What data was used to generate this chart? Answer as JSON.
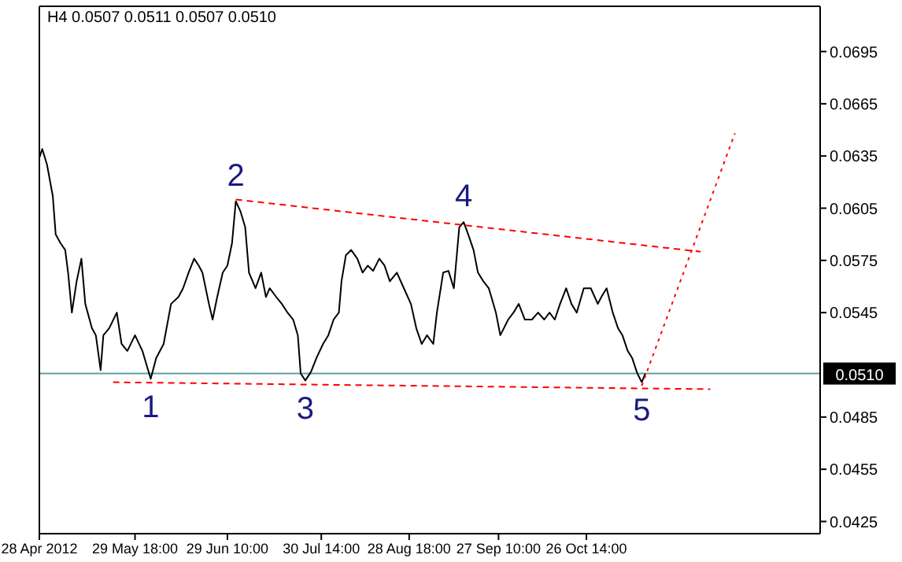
{
  "chart_data": {
    "type": "line",
    "title": "H4  0.0507 0.0511 0.0507 0.0510",
    "xlim": [
      "2012-04-28T00:00",
      "2013-01-12T04:00"
    ],
    "ylim": [
      0.0418,
      0.0721
    ],
    "xticks": [
      {
        "value": "2012-04-28T00:00",
        "label": "28 Apr 2012"
      },
      {
        "value": "2012-05-29T18:00",
        "label": "29 May 18:00"
      },
      {
        "value": "2012-06-29T10:00",
        "label": "29 Jun 10:00"
      },
      {
        "value": "2012-07-30T14:00",
        "label": "30 Jul 14:00"
      },
      {
        "value": "2012-08-28T18:00",
        "label": "28 Aug 18:00"
      },
      {
        "value": "2012-09-27T10:00",
        "label": "27 Sep 10:00"
      },
      {
        "value": "2012-10-26T14:00",
        "label": "26 Oct 14:00"
      }
    ],
    "yticks": [
      0.0695,
      0.0665,
      0.0635,
      0.0605,
      0.0575,
      0.0545,
      0.0485,
      0.0455,
      0.0425
    ],
    "grid": false,
    "marker": "none",
    "series": [
      {
        "color": "#000000",
        "line_style": "solid",
        "x": [
          "2012-04-28T00:00",
          "2012-04-28T23:00",
          "2012-04-30T13:00",
          "2012-05-02T11:00",
          "2012-05-03T10:00",
          "2012-05-05T00:00",
          "2012-05-06T14:00",
          "2012-05-07T13:00",
          "2012-05-08T19:00",
          "2012-05-10T09:00",
          "2012-05-11T23:00",
          "2012-05-13T06:00",
          "2012-05-15T11:00",
          "2012-05-16T18:00",
          "2012-05-18T08:00",
          "2012-05-19T06:00",
          "2012-05-21T04:00",
          "2012-05-23T17:00",
          "2012-05-25T07:00",
          "2012-05-27T05:00",
          "2012-05-29T18:00",
          "2012-06-01T05:00",
          "2012-06-02T18:00",
          "2012-06-03T23:00",
          "2012-06-05T19:00",
          "2012-06-08T06:00",
          "2012-06-10T17:00",
          "2012-06-13T04:00",
          "2012-06-14T17:00",
          "2012-06-16T13:00",
          "2012-06-18T09:00",
          "2012-06-19T22:00",
          "2012-06-21T03:00",
          "2012-06-23T07:00",
          "2012-06-24T12:00",
          "2012-06-26T01:00",
          "2012-06-27T21:00",
          "2012-06-29T10:00",
          "2012-06-30T23:00",
          "2012-07-02T05:00",
          "2012-07-03T19:00",
          "2012-07-05T08:00",
          "2012-07-06T14:00",
          "2012-07-08T18:00",
          "2012-07-10T15:00",
          "2012-07-12T05:00",
          "2012-07-13T11:00",
          "2012-07-15T15:00",
          "2012-07-17T12:00",
          "2012-07-19T09:00",
          "2012-07-21T06:00",
          "2012-07-22T19:00",
          "2012-07-23T18:00",
          "2012-07-25T07:00",
          "2012-07-27T04:00",
          "2012-07-29T00:00",
          "2012-07-31T04:00",
          "2012-08-01T22:00",
          "2012-08-03T16:00",
          "2012-08-05T10:00",
          "2012-08-06T07:00",
          "2012-08-07T18:00",
          "2012-08-09T12:00",
          "2012-08-11T13:00",
          "2012-08-13T07:00",
          "2012-08-15T01:00",
          "2012-08-16T19:00",
          "2012-08-18T20:00",
          "2012-08-20T14:00",
          "2012-08-22T08:00",
          "2012-08-24T16:00",
          "2012-08-27T00:00",
          "2012-08-29T08:00",
          "2012-08-31T03:00",
          "2012-09-01T22:00",
          "2012-09-03T16:00",
          "2012-09-05T18:00",
          "2012-09-06T23:00",
          "2012-09-09T01:00",
          "2012-09-10T19:00",
          "2012-09-12T14:00",
          "2012-09-14T09:00",
          "2012-09-15T20:00",
          "2012-09-17T08:00",
          "2012-09-19T03:00",
          "2012-09-20T14:00",
          "2012-09-22T09:00",
          "2012-09-24T04:00",
          "2012-09-25T01:00",
          "2012-09-26T13:00",
          "2012-09-28T00:00",
          "2012-09-29T04:00",
          "2012-09-30T15:00",
          "2012-10-02T09:00",
          "2012-10-04T03:00",
          "2012-10-06T04:00",
          "2012-10-08T12:00",
          "2012-10-10T13:00",
          "2012-10-12T14:00",
          "2012-10-14T08:00",
          "2012-10-16T02:00",
          "2012-10-17T20:00",
          "2012-10-19T21:00",
          "2012-10-21T15:00",
          "2012-10-23T09:00",
          "2012-10-25T17:00",
          "2012-10-28T01:00",
          "2012-10-30T09:00",
          "2012-10-31T13:00",
          "2012-11-02T07:00",
          "2012-11-04T08:00",
          "2012-11-06T02:00",
          "2012-11-07T13:00",
          "2012-11-09T07:00",
          "2012-11-10T18:00",
          "2012-11-12T12:00",
          "2012-11-13T23:00",
          "2012-11-15T03:00"
        ],
        "values": [
          0.0634,
          0.0639,
          0.063,
          0.0612,
          0.059,
          0.0585,
          0.0581,
          0.0568,
          0.0545,
          0.0563,
          0.0576,
          0.055,
          0.0536,
          0.0532,
          0.0512,
          0.0532,
          0.0536,
          0.0545,
          0.0527,
          0.0523,
          0.0532,
          0.0523,
          0.0514,
          0.0507,
          0.0519,
          0.0527,
          0.055,
          0.0554,
          0.0559,
          0.0568,
          0.0576,
          0.0572,
          0.0568,
          0.055,
          0.0541,
          0.0554,
          0.0568,
          0.0572,
          0.0585,
          0.0609,
          0.0603,
          0.0594,
          0.0568,
          0.0559,
          0.0568,
          0.0554,
          0.0559,
          0.0554,
          0.055,
          0.0545,
          0.0541,
          0.0532,
          0.051,
          0.0506,
          0.0511,
          0.0519,
          0.0527,
          0.0532,
          0.0541,
          0.0545,
          0.0563,
          0.0578,
          0.0581,
          0.0576,
          0.0568,
          0.0572,
          0.0569,
          0.0576,
          0.0572,
          0.0563,
          0.0568,
          0.0559,
          0.055,
          0.0536,
          0.0527,
          0.0532,
          0.0527,
          0.0545,
          0.0568,
          0.0569,
          0.0559,
          0.0594,
          0.0597,
          0.059,
          0.0581,
          0.0568,
          0.0563,
          0.0559,
          0.0554,
          0.0545,
          0.0532,
          0.0536,
          0.0541,
          0.0545,
          0.055,
          0.0541,
          0.0541,
          0.0545,
          0.0541,
          0.0545,
          0.0541,
          0.055,
          0.0559,
          0.055,
          0.0545,
          0.0559,
          0.0559,
          0.055,
          0.0554,
          0.0559,
          0.0545,
          0.0536,
          0.0532,
          0.0523,
          0.0519,
          0.051,
          0.0505,
          0.051
        ]
      },
      {
        "color": "#ff0000",
        "line_style": "dashed",
        "x": [
          "2012-07-02T05:00",
          "2012-12-03T12:00"
        ],
        "values": [
          0.061,
          0.058
        ]
      },
      {
        "color": "#ff0000",
        "line_style": "dashed",
        "x": [
          "2012-05-22T11:00",
          "2012-12-06T17:00"
        ],
        "values": [
          0.0505,
          0.0501
        ]
      },
      {
        "color": "#ff0000",
        "line_style": "dotted",
        "x": [
          "2012-11-13T23:00",
          "2012-12-14T21:00"
        ],
        "values": [
          0.0503,
          0.0648
        ]
      }
    ],
    "ref_lines": [
      {
        "axis": "y",
        "value": 0.051,
        "label": "0.0510",
        "color": "#5f9ea0"
      }
    ],
    "annotations": [
      {
        "text": "1",
        "x": "2012-06-03T23:00",
        "y": 0.0507
      },
      {
        "text": "2",
        "x": "2012-07-02T05:00",
        "y": 0.0609
      },
      {
        "text": "3",
        "x": "2012-07-25T07:00",
        "y": 0.0506
      },
      {
        "text": "4",
        "x": "2012-09-15T20:00",
        "y": 0.0597
      },
      {
        "text": "5",
        "x": "2012-11-13T23:00",
        "y": 0.0505
      }
    ]
  }
}
